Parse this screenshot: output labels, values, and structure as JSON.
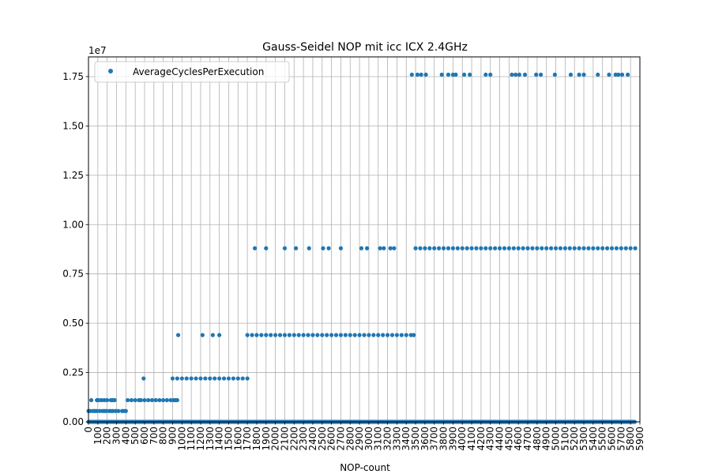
{
  "chart_data": {
    "type": "scatter",
    "title": "Gauss-Seidel NOP mit icc ICX 2.4GHz",
    "xlabel": "NOP-count",
    "ylabel": "",
    "y_offset_label": "1e7",
    "xlim": [
      0,
      5900
    ],
    "ylim": [
      0,
      18500000
    ],
    "x_ticks": [
      0,
      100,
      200,
      300,
      400,
      500,
      600,
      700,
      800,
      900,
      1000,
      1100,
      1200,
      1300,
      1400,
      1500,
      1600,
      1700,
      1800,
      1900,
      2000,
      2100,
      2200,
      2300,
      2400,
      2500,
      2600,
      2700,
      2800,
      2900,
      3000,
      3100,
      3200,
      3300,
      3400,
      3500,
      3600,
      3700,
      3800,
      3900,
      4000,
      4100,
      4200,
      4300,
      4400,
      4500,
      4600,
      4700,
      4800,
      4900,
      5000,
      5100,
      5200,
      5300,
      5400,
      5500,
      5600,
      5700,
      5800,
      5900
    ],
    "y_ticks": [
      0,
      2500000,
      5000000,
      7500000,
      10000000,
      12500000,
      15000000,
      17500000
    ],
    "y_tick_labels": [
      "0.00",
      "0.25",
      "0.50",
      "0.75",
      "1.00",
      "1.25",
      "1.50",
      "1.75"
    ],
    "grid": true,
    "legend_position": "top-left",
    "series": [
      {
        "name": "AverageCyclesPerExecution",
        "color": "#1f77b4",
        "x": [
          0,
          20,
          50,
          70,
          90,
          120,
          150,
          170,
          190,
          220,
          240,
          260,
          290,
          320,
          360,
          380,
          400,
          30,
          90,
          110,
          140,
          170,
          200,
          240,
          260,
          280,
          420,
          460,
          500,
          540,
          560,
          600,
          640,
          680,
          720,
          760,
          800,
          840,
          880,
          910,
          930,
          950,
          590,
          900,
          950,
          1000,
          1050,
          1100,
          1150,
          1200,
          1250,
          1300,
          1350,
          1400,
          1450,
          1500,
          1550,
          1600,
          1650,
          1700,
          960,
          1220,
          1330,
          1400,
          1700,
          1750,
          1800,
          1850,
          1900,
          1950,
          2000,
          2050,
          2100,
          2150,
          2200,
          2250,
          2300,
          2350,
          2400,
          2450,
          2500,
          2550,
          2600,
          2650,
          2700,
          2750,
          2800,
          2850,
          2900,
          2950,
          3000,
          3050,
          3100,
          3150,
          3200,
          3250,
          3300,
          3350,
          3400,
          3450,
          3480,
          1780,
          1900,
          2100,
          2220,
          2360,
          2510,
          2570,
          2700,
          2920,
          2980,
          3120,
          3160,
          3230,
          3270,
          3500,
          3550,
          3600,
          3650,
          3700,
          3750,
          3800,
          3850,
          3900,
          3950,
          4000,
          4050,
          4100,
          4150,
          4200,
          4250,
          4300,
          4350,
          4400,
          4450,
          4500,
          4550,
          4600,
          4650,
          4700,
          4750,
          4800,
          4850,
          4900,
          4950,
          5000,
          5050,
          5100,
          5150,
          5200,
          5250,
          5300,
          5350,
          5400,
          5450,
          5500,
          5550,
          5600,
          5650,
          5700,
          5750,
          5800,
          5850,
          3460,
          3520,
          3560,
          3610,
          3780,
          3850,
          3900,
          3930,
          4020,
          4080,
          4250,
          4300,
          4530,
          4570,
          4610,
          4670,
          4790,
          4840,
          4990,
          5160,
          5250,
          5300,
          5450,
          5570,
          5640,
          5670,
          5710,
          5770
        ],
        "y": [
          550000,
          550000,
          550000,
          550000,
          550000,
          550000,
          550000,
          550000,
          550000,
          550000,
          550000,
          550000,
          550000,
          550000,
          550000,
          550000,
          550000,
          1100000,
          1100000,
          1100000,
          1100000,
          1100000,
          1100000,
          1100000,
          1100000,
          1100000,
          1100000,
          1100000,
          1100000,
          1100000,
          1100000,
          1100000,
          1100000,
          1100000,
          1100000,
          1100000,
          1100000,
          1100000,
          1100000,
          1100000,
          1100000,
          1100000,
          2200000,
          2200000,
          2200000,
          2200000,
          2200000,
          2200000,
          2200000,
          2200000,
          2200000,
          2200000,
          2200000,
          2200000,
          2200000,
          2200000,
          2200000,
          2200000,
          2200000,
          2200000,
          4400000,
          4400000,
          4400000,
          4400000,
          4400000,
          4400000,
          4400000,
          4400000,
          4400000,
          4400000,
          4400000,
          4400000,
          4400000,
          4400000,
          4400000,
          4400000,
          4400000,
          4400000,
          4400000,
          4400000,
          4400000,
          4400000,
          4400000,
          4400000,
          4400000,
          4400000,
          4400000,
          4400000,
          4400000,
          4400000,
          4400000,
          4400000,
          4400000,
          4400000,
          4400000,
          4400000,
          4400000,
          4400000,
          4400000,
          4400000,
          4400000,
          8800000,
          8800000,
          8800000,
          8800000,
          8800000,
          8800000,
          8800000,
          8800000,
          8800000,
          8800000,
          8800000,
          8800000,
          8800000,
          8800000,
          8800000,
          8800000,
          8800000,
          8800000,
          8800000,
          8800000,
          8800000,
          8800000,
          8800000,
          8800000,
          8800000,
          8800000,
          8800000,
          8800000,
          8800000,
          8800000,
          8800000,
          8800000,
          8800000,
          8800000,
          8800000,
          8800000,
          8800000,
          8800000,
          8800000,
          8800000,
          8800000,
          8800000,
          8800000,
          8800000,
          8800000,
          8800000,
          8800000,
          8800000,
          8800000,
          8800000,
          8800000,
          8800000,
          8800000,
          8800000,
          8800000,
          8800000,
          8800000,
          8800000,
          8800000,
          8800000,
          8800000,
          8800000,
          17600000,
          17600000,
          17600000,
          17600000,
          17600000,
          17600000,
          17600000,
          17600000,
          17600000,
          17600000,
          17600000,
          17600000,
          17600000,
          17600000,
          17600000,
          17600000,
          17600000,
          17600000,
          17600000,
          17600000,
          17600000,
          17600000,
          17600000,
          17600000,
          17600000,
          17600000,
          17600000,
          17600000
        ]
      }
    ],
    "baseline_y": 0
  }
}
